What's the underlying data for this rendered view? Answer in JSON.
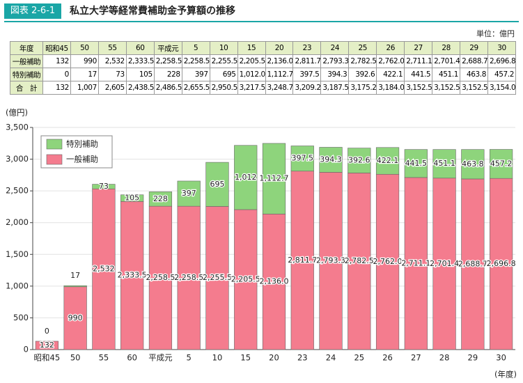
{
  "header": {
    "label": "図表 2-6-1",
    "title": "私立大学等経常費補助金予算額の推移",
    "unit": "単位：億円"
  },
  "table": {
    "header": "年度",
    "rows": [
      {
        "name": "一般補助",
        "cells": [
          "132",
          "990",
          "2,532",
          "2,333.5",
          "2,258.5",
          "2,258.5",
          "2,255.5",
          "2,205.5",
          "2,136.0",
          "2,811.7",
          "2,793.3",
          "2,782.5",
          "2,762.0",
          "2,711.1",
          "2,701.4",
          "2,688.7",
          "2,696.8"
        ]
      },
      {
        "name": "特別補助",
        "cells": [
          "0",
          "17",
          "73",
          "105",
          "228",
          "397",
          "695",
          "1,012.0",
          "1,112.7",
          "397.5",
          "394.3",
          "392.6",
          "422.1",
          "441.5",
          "451.1",
          "463.8",
          "457.2"
        ]
      },
      {
        "name": "合　計",
        "cells": [
          "132",
          "1,007",
          "2,605",
          "2,438.5",
          "2,486.5",
          "2,655.5",
          "2,950.5",
          "3,217.5",
          "3,248.7",
          "3,209.2",
          "3,187.5",
          "3,175.2",
          "3,184.0",
          "3,152.5",
          "3,152.5",
          "3,152.5",
          "3,154.0"
        ]
      }
    ]
  },
  "chart_data": {
    "type": "stacked_bar",
    "y_label": "(億円)",
    "x_label": "(年度)",
    "categories": [
      "昭和45",
      "50",
      "55",
      "60",
      "平成元",
      "5",
      "10",
      "15",
      "20",
      "23",
      "24",
      "25",
      "26",
      "27",
      "28",
      "29",
      "30"
    ],
    "ylim": [
      0,
      3500
    ],
    "yticks": [
      0,
      500,
      {
        "value": 1000,
        "label": "1,000"
      },
      {
        "value": 1500,
        "label": "1,500"
      },
      {
        "value": 2000,
        "label": "2,000"
      },
      {
        "value": 2500,
        "label": "2,500"
      },
      {
        "value": 3000,
        "label": "3,000"
      },
      {
        "value": 3500,
        "label": "3,500"
      }
    ],
    "grid": true,
    "legend": "top-left",
    "series": [
      {
        "name": "一般補助",
        "color": "#f47c8e",
        "values": [
          132,
          990,
          2532,
          2333.5,
          2258.5,
          2258.5,
          2255.5,
          2205.5,
          2136.0,
          2811.7,
          2793.3,
          2782.5,
          2762.0,
          2711.1,
          2701.4,
          2688.7,
          2696.8
        ],
        "value_labels": [
          "132",
          "990",
          "2,532",
          "2,333.5",
          "2,258.5",
          "2,258.5",
          "2,255.5",
          "2,205.5",
          "2,136.0",
          "2,811.7",
          "2,793.3",
          "2,782.5",
          "2,762.0",
          "2,711.1",
          "2,701.4",
          "2,688.7",
          "2,696.8"
        ]
      },
      {
        "name": "特別補助",
        "color": "#8ed47c",
        "values": [
          0,
          17,
          73,
          105,
          228,
          397,
          695,
          1012,
          1112.7,
          397.5,
          394.3,
          392.6,
          422.1,
          441.5,
          451.1,
          463.8,
          457.2
        ],
        "value_labels": [
          "0",
          "17",
          "73",
          "105",
          "228",
          "397",
          "695",
          "1,012",
          "1,112.7",
          "397.5",
          "394.3",
          "392.6",
          "422.1",
          "441.5",
          "451.1",
          "463.8",
          "457.2"
        ]
      }
    ]
  }
}
